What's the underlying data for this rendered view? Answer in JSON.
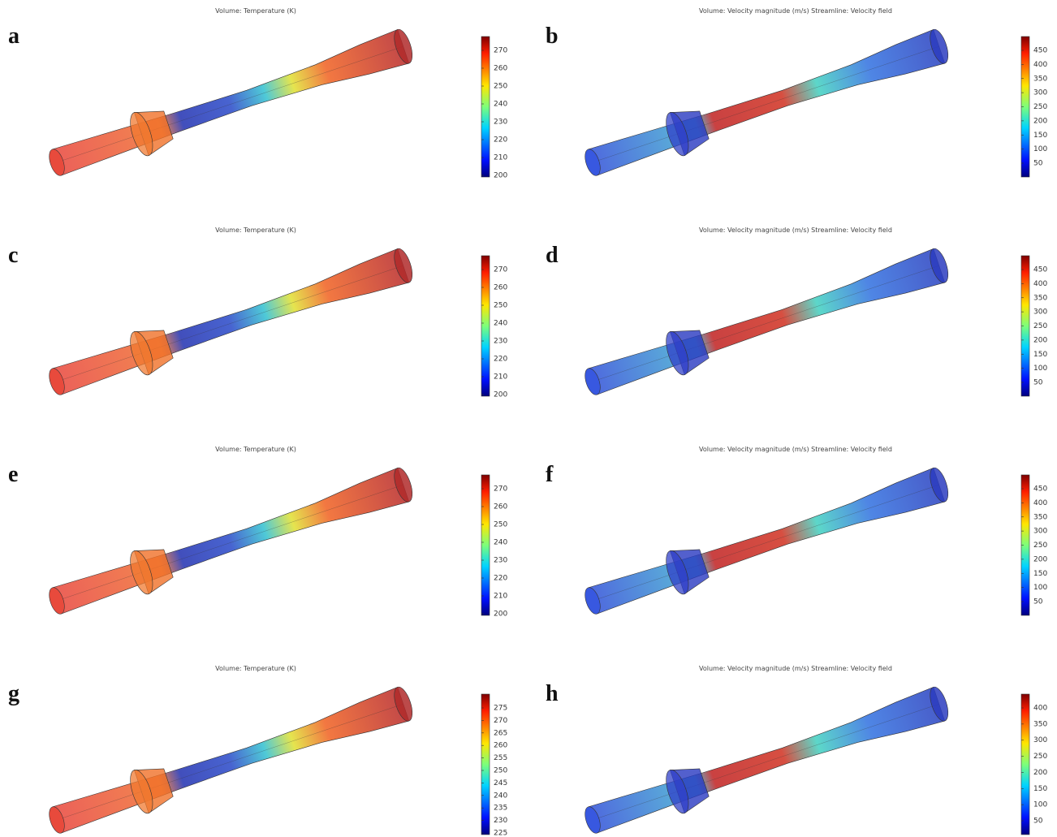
{
  "panels": [
    {
      "label": "a",
      "title": "Volume: Temperature (K)",
      "colorbar_ticks": [
        200,
        210,
        220,
        230,
        240,
        250,
        260,
        270
      ]
    },
    {
      "label": "b",
      "title": "Volume: Velocity magnitude (m/s)  Streamline: Velocity field",
      "colorbar_ticks": [
        50,
        100,
        150,
        200,
        250,
        300,
        350,
        400,
        450
      ]
    },
    {
      "label": "c",
      "title": "Volume: Temperature (K)",
      "colorbar_ticks": [
        200,
        210,
        220,
        230,
        240,
        250,
        260,
        270
      ]
    },
    {
      "label": "d",
      "title": "Volume: Velocity magnitude (m/s)  Streamline: Velocity field",
      "colorbar_ticks": [
        50,
        100,
        150,
        200,
        250,
        300,
        350,
        400,
        450
      ]
    },
    {
      "label": "e",
      "title": "Volume: Temperature (K)",
      "colorbar_ticks": [
        200,
        210,
        220,
        230,
        240,
        250,
        260,
        270
      ]
    },
    {
      "label": "f",
      "title": "Volume: Velocity magnitude (m/s)  Streamline: Velocity field",
      "colorbar_ticks": [
        50,
        100,
        150,
        200,
        250,
        300,
        350,
        400,
        450
      ]
    },
    {
      "label": "g",
      "title": "Volume: Temperature (K)",
      "colorbar_ticks": [
        225,
        230,
        235,
        240,
        245,
        250,
        255,
        260,
        265,
        270,
        275
      ]
    },
    {
      "label": "h",
      "title": "Volume: Velocity magnitude (m/s)  Streamline: Velocity field",
      "colorbar_ticks": [
        50,
        100,
        150,
        200,
        250,
        300,
        350,
        400
      ]
    }
  ]
}
